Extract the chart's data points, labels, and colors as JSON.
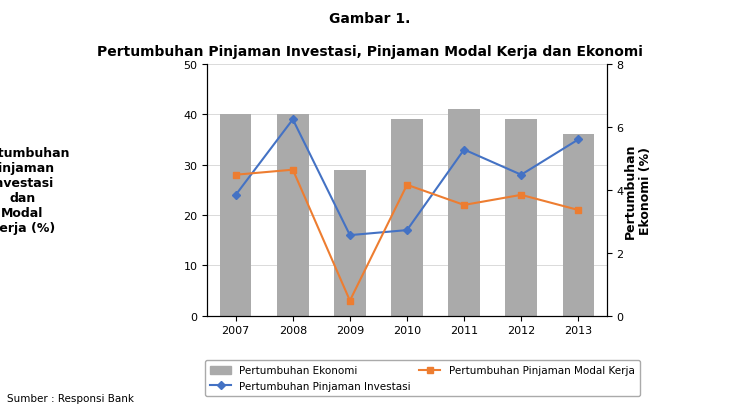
{
  "title_top": "Gambar 1.",
  "title_main": "Pertumbuhan Pinjaman Investasi, Pinjaman Modal Kerja dan Ekonomi",
  "years": [
    2007,
    2008,
    2009,
    2010,
    2011,
    2012,
    2013
  ],
  "bar_values": [
    40,
    40,
    29,
    39,
    41,
    39,
    36
  ],
  "line_investasi": [
    24,
    39,
    16,
    17,
    33,
    28,
    35
  ],
  "line_modal_kerja": [
    28,
    29,
    3,
    26,
    22,
    24,
    21
  ],
  "bar_color": "#AAAAAA",
  "line_investasi_color": "#4472C4",
  "line_modal_kerja_color": "#ED7D31",
  "ylabel_left": "Pertumbuhan\nPinjaman\nInvestasi\ndan\nModal\nKerja (%)",
  "ylabel_right": "Pertumbuhan\nEkonomi (%)",
  "ylim_left": [
    0,
    50
  ],
  "ylim_right": [
    0,
    8
  ],
  "yticks_left": [
    0,
    10,
    20,
    30,
    40,
    50
  ],
  "yticks_right": [
    0,
    2,
    4,
    6,
    8
  ],
  "legend_bar": "Pertumbuhan Ekonomi",
  "legend_investasi": "Pertumbuhan Pinjaman Investasi",
  "legend_modal": "Pertumbuhan Pinjaman Modal Kerja",
  "source": "Sumber : Responsi Bank",
  "bar_width": 0.55,
  "background_color": "#FFFFFF",
  "plot_bg": "#FFFFFF"
}
